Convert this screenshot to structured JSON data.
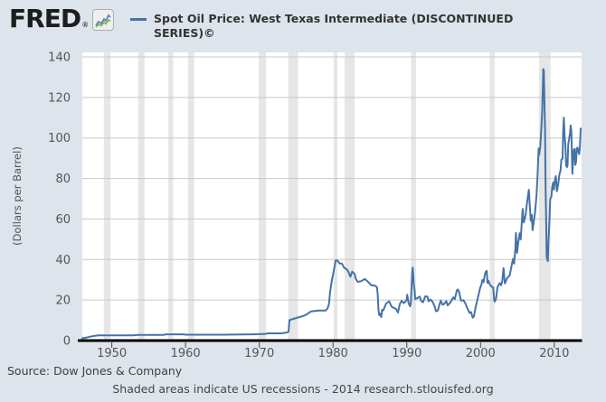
{
  "header": {
    "logo_text": "FRED",
    "logo_registered": "®",
    "legend_label": "Spot Oil Price: West Texas Intermediate (DISCONTINUED SERIES)©"
  },
  "footer": {
    "source": "Source: Dow Jones & Company",
    "note": "Shaded areas indicate US recessions - 2014 research.stlouisfed.org"
  },
  "chart_data": {
    "type": "line",
    "title": "Spot Oil Price: West Texas Intermediate (DISCONTINUED SERIES)©",
    "ylabel": "(Dollars per Barrel)",
    "xlabel": "",
    "x_range": [
      1946,
      2013.7
    ],
    "y_range": [
      0,
      140
    ],
    "x_ticks": [
      1950,
      1960,
      1970,
      1980,
      1990,
      2000,
      2010
    ],
    "y_ticks": [
      0,
      20,
      40,
      60,
      80,
      100,
      120,
      140
    ],
    "grid": "horizontal",
    "legend_position": "top",
    "recessions": [
      [
        1948.92,
        1949.83
      ],
      [
        1953.58,
        1954.42
      ],
      [
        1957.67,
        1958.33
      ],
      [
        1960.33,
        1961.17
      ],
      [
        1969.92,
        1970.92
      ],
      [
        1973.92,
        1975.25
      ],
      [
        1980.08,
        1980.58
      ],
      [
        1981.58,
        1982.92
      ],
      [
        1990.58,
        1991.25
      ],
      [
        2001.25,
        2001.92
      ],
      [
        2007.92,
        2009.5
      ]
    ],
    "series": [
      {
        "name": "Spot Oil Price: West Texas Intermediate (DISCONTINUED SERIES)©",
        "color": "#4572a7",
        "points": [
          [
            1946.0,
            1.17
          ],
          [
            1946.4,
            1.35
          ],
          [
            1946.75,
            1.63
          ],
          [
            1947.1,
            1.9
          ],
          [
            1947.5,
            2.22
          ],
          [
            1948.2,
            2.57
          ],
          [
            1952.9,
            2.57
          ],
          [
            1953.5,
            2.82
          ],
          [
            1957.1,
            2.82
          ],
          [
            1957.3,
            3.07
          ],
          [
            1959.8,
            3.07
          ],
          [
            1960.0,
            2.88
          ],
          [
            1965.5,
            2.88
          ],
          [
            1966.2,
            2.94
          ],
          [
            1969.0,
            3.09
          ],
          [
            1970.0,
            3.18
          ],
          [
            1970.9,
            3.31
          ],
          [
            1971.1,
            3.56
          ],
          [
            1973.0,
            3.56
          ],
          [
            1973.6,
            3.89
          ],
          [
            1973.95,
            4.31
          ],
          [
            1974.1,
            10.11
          ],
          [
            1975.0,
            11.16
          ],
          [
            1976.0,
            12.17
          ],
          [
            1976.5,
            13.1
          ],
          [
            1977.0,
            14.4
          ],
          [
            1978.0,
            14.85
          ],
          [
            1979.0,
            14.85
          ],
          [
            1979.25,
            15.85
          ],
          [
            1979.45,
            18.1
          ],
          [
            1979.6,
            24.0
          ],
          [
            1979.8,
            29.0
          ],
          [
            1980.0,
            32.5
          ],
          [
            1980.35,
            39.5
          ],
          [
            1980.6,
            39.5
          ],
          [
            1980.9,
            38.0
          ],
          [
            1981.2,
            38.0
          ],
          [
            1981.5,
            36.0
          ],
          [
            1981.9,
            35.0
          ],
          [
            1982.1,
            33.9
          ],
          [
            1982.35,
            31.5
          ],
          [
            1982.6,
            34.0
          ],
          [
            1982.9,
            33.0
          ],
          [
            1983.1,
            30.3
          ],
          [
            1983.35,
            29.0
          ],
          [
            1983.8,
            29.3
          ],
          [
            1984.3,
            30.4
          ],
          [
            1984.8,
            28.8
          ],
          [
            1985.2,
            27.3
          ],
          [
            1985.6,
            27.2
          ],
          [
            1985.95,
            26.5
          ],
          [
            1986.05,
            22.9
          ],
          [
            1986.15,
            15.4
          ],
          [
            1986.25,
            12.6
          ],
          [
            1986.35,
            13.3
          ],
          [
            1986.55,
            11.6
          ],
          [
            1986.65,
            15.1
          ],
          [
            1986.8,
            14.9
          ],
          [
            1986.95,
            16.1
          ],
          [
            1987.2,
            18.3
          ],
          [
            1987.6,
            19.4
          ],
          [
            1987.95,
            16.7
          ],
          [
            1988.2,
            16.2
          ],
          [
            1988.55,
            15.6
          ],
          [
            1988.8,
            13.8
          ],
          [
            1989.05,
            18.0
          ],
          [
            1989.3,
            19.6
          ],
          [
            1989.6,
            18.5
          ],
          [
            1989.95,
            19.8
          ],
          [
            1990.05,
            22.6
          ],
          [
            1990.25,
            18.4
          ],
          [
            1990.45,
            16.9
          ],
          [
            1990.55,
            18.6
          ],
          [
            1990.65,
            27.2
          ],
          [
            1990.73,
            33.7
          ],
          [
            1990.8,
            36.0
          ],
          [
            1990.88,
            32.3
          ],
          [
            1990.95,
            27.3
          ],
          [
            1991.05,
            25.2
          ],
          [
            1991.15,
            20.5
          ],
          [
            1991.45,
            21.0
          ],
          [
            1991.75,
            21.7
          ],
          [
            1991.95,
            19.5
          ],
          [
            1992.2,
            18.9
          ],
          [
            1992.5,
            21.8
          ],
          [
            1992.8,
            21.7
          ],
          [
            1992.95,
            19.4
          ],
          [
            1993.2,
            20.3
          ],
          [
            1993.5,
            19.1
          ],
          [
            1993.8,
            16.7
          ],
          [
            1993.95,
            14.5
          ],
          [
            1994.2,
            14.8
          ],
          [
            1994.45,
            17.9
          ],
          [
            1994.6,
            19.7
          ],
          [
            1994.85,
            17.7
          ],
          [
            1995.05,
            18.0
          ],
          [
            1995.35,
            19.5
          ],
          [
            1995.55,
            17.4
          ],
          [
            1995.95,
            19.0
          ],
          [
            1996.3,
            21.3
          ],
          [
            1996.5,
            20.4
          ],
          [
            1996.8,
            24.9
          ],
          [
            1996.95,
            25.2
          ],
          [
            1997.1,
            24.0
          ],
          [
            1997.35,
            19.7
          ],
          [
            1997.7,
            19.9
          ],
          [
            1997.95,
            18.3
          ],
          [
            1998.2,
            16.1
          ],
          [
            1998.5,
            13.7
          ],
          [
            1998.7,
            14.1
          ],
          [
            1998.95,
            11.3
          ],
          [
            1999.1,
            12.0
          ],
          [
            1999.35,
            16.8
          ],
          [
            1999.6,
            20.5
          ],
          [
            1999.95,
            26.1
          ],
          [
            2000.1,
            27.3
          ],
          [
            2000.25,
            29.9
          ],
          [
            2000.4,
            28.8
          ],
          [
            2000.55,
            31.8
          ],
          [
            2000.7,
            33.9
          ],
          [
            2000.85,
            34.4
          ],
          [
            2000.95,
            28.4
          ],
          [
            2001.05,
            29.6
          ],
          [
            2001.3,
            27.4
          ],
          [
            2001.55,
            26.5
          ],
          [
            2001.7,
            26.2
          ],
          [
            2001.87,
            19.7
          ],
          [
            2001.95,
            19.3
          ],
          [
            2002.1,
            20.7
          ],
          [
            2002.3,
            26.3
          ],
          [
            2002.6,
            28.4
          ],
          [
            2002.8,
            27.3
          ],
          [
            2002.95,
            29.4
          ],
          [
            2003.12,
            35.8
          ],
          [
            2003.3,
            28.2
          ],
          [
            2003.6,
            30.7
          ],
          [
            2003.95,
            32.2
          ],
          [
            2004.2,
            36.7
          ],
          [
            2004.4,
            40.3
          ],
          [
            2004.55,
            38.0
          ],
          [
            2004.72,
            45.4
          ],
          [
            2004.8,
            53.1
          ],
          [
            2004.95,
            43.3
          ],
          [
            2005.1,
            48.0
          ],
          [
            2005.3,
            53.0
          ],
          [
            2005.45,
            50.0
          ],
          [
            2005.6,
            59.0
          ],
          [
            2005.72,
            65.0
          ],
          [
            2005.85,
            58.3
          ],
          [
            2005.95,
            59.4
          ],
          [
            2006.1,
            61.6
          ],
          [
            2006.35,
            69.5
          ],
          [
            2006.55,
            74.4
          ],
          [
            2006.72,
            63.9
          ],
          [
            2006.82,
            59.1
          ],
          [
            2006.95,
            62.0
          ],
          [
            2007.05,
            54.5
          ],
          [
            2007.2,
            58.2
          ],
          [
            2007.4,
            63.5
          ],
          [
            2007.6,
            72.4
          ],
          [
            2007.72,
            79.9
          ],
          [
            2007.87,
            94.8
          ],
          [
            2007.95,
            91.7
          ],
          [
            2008.1,
            95.4
          ],
          [
            2008.25,
            105.5
          ],
          [
            2008.35,
            112.6
          ],
          [
            2008.45,
            125.4
          ],
          [
            2008.5,
            134.0
          ],
          [
            2008.58,
            133.4
          ],
          [
            2008.67,
            116.7
          ],
          [
            2008.75,
            104.1
          ],
          [
            2008.82,
            76.6
          ],
          [
            2008.9,
            57.3
          ],
          [
            2008.97,
            41.1
          ],
          [
            2009.12,
            39.2
          ],
          [
            2009.2,
            48.0
          ],
          [
            2009.35,
            59.2
          ],
          [
            2009.45,
            69.7
          ],
          [
            2009.6,
            71.1
          ],
          [
            2009.72,
            75.8
          ],
          [
            2009.85,
            78.0
          ],
          [
            2009.95,
            74.5
          ],
          [
            2010.05,
            78.3
          ],
          [
            2010.2,
            81.2
          ],
          [
            2010.35,
            73.7
          ],
          [
            2010.5,
            76.4
          ],
          [
            2010.7,
            81.9
          ],
          [
            2010.85,
            84.2
          ],
          [
            2010.95,
            89.2
          ],
          [
            2011.05,
            89.6
          ],
          [
            2011.13,
            89.7
          ],
          [
            2011.2,
            102.9
          ],
          [
            2011.3,
            110.0
          ],
          [
            2011.4,
            101.3
          ],
          [
            2011.5,
            96.3
          ],
          [
            2011.6,
            86.3
          ],
          [
            2011.72,
            85.6
          ],
          [
            2011.8,
            86.4
          ],
          [
            2011.9,
            97.2
          ],
          [
            2011.97,
            98.6
          ],
          [
            2012.05,
            100.3
          ],
          [
            2012.13,
            102.3
          ],
          [
            2012.22,
            106.2
          ],
          [
            2012.32,
            103.3
          ],
          [
            2012.45,
            82.3
          ],
          [
            2012.55,
            87.9
          ],
          [
            2012.65,
            94.1
          ],
          [
            2012.75,
            94.6
          ],
          [
            2012.85,
            86.7
          ],
          [
            2012.95,
            88.2
          ],
          [
            2013.05,
            94.8
          ],
          [
            2013.15,
            95.3
          ],
          [
            2013.28,
            93.0
          ],
          [
            2013.38,
            92.0
          ],
          [
            2013.48,
            95.8
          ],
          [
            2013.58,
            104.7
          ]
        ]
      }
    ],
    "style": {
      "page_bg": "#dde4eb",
      "plot_bg": "#ffffff",
      "band_color": "#e6e6e6",
      "grid_color": "#c8c8c8",
      "axis_color": "#000000",
      "tick_color": "#444444",
      "tick_label_color": "#555555",
      "line_width": 2
    }
  }
}
